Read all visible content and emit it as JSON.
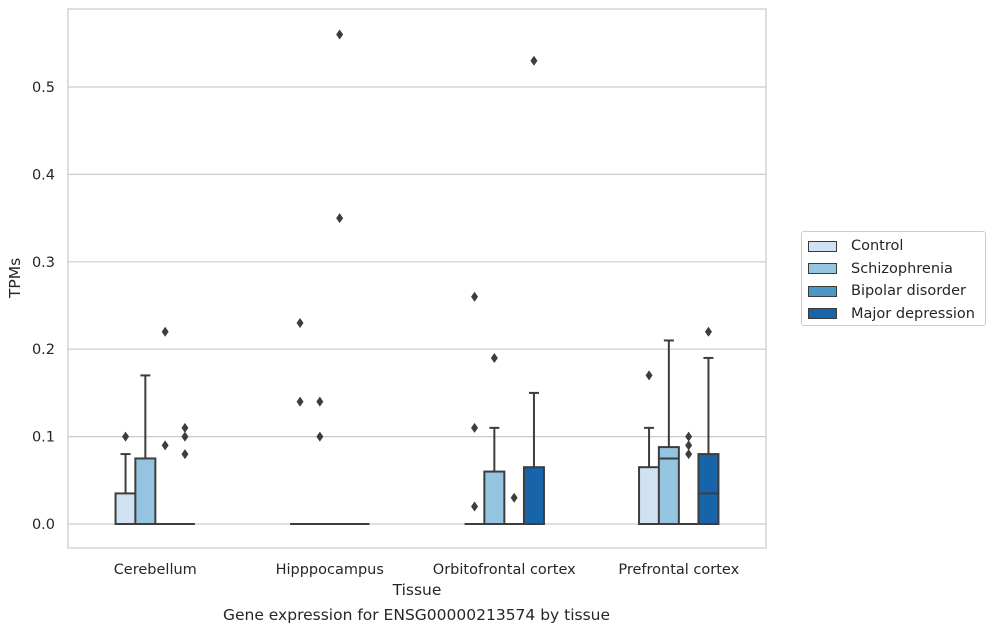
{
  "chart_data": {
    "type": "boxplot",
    "title": "",
    "caption": "Gene expression for ENSG00000213574 by tissue",
    "xlabel": "Tissue",
    "ylabel": "TPMs",
    "ylim": [
      -0.028,
      0.59
    ],
    "yticks": [
      "0.0",
      "0.1",
      "0.2",
      "0.3",
      "0.4",
      "0.5"
    ],
    "ytick_values": [
      0,
      0.1,
      0.2,
      0.3,
      0.4,
      0.5
    ],
    "grid": true,
    "legend_position": "right",
    "categories": [
      "Cerebellum",
      "Hipppocampus",
      "Orbitofrontal cortex",
      "Prefrontal cortex"
    ],
    "series": [
      {
        "name": "Control",
        "color": "#d0e1f2",
        "boxes": [
          {
            "q1": 0,
            "median": 0,
            "q3": 0.035,
            "whisker_low": 0,
            "whisker_high": 0.08,
            "outliers": [
              0.1
            ]
          },
          {
            "q1": 0,
            "median": 0,
            "q3": 0,
            "whisker_low": 0,
            "whisker_high": 0,
            "outliers": [
              0.23,
              0.14
            ]
          },
          {
            "q1": 0,
            "median": 0,
            "q3": 0,
            "whisker_low": 0,
            "whisker_high": 0,
            "outliers": [
              0.26,
              0.11,
              0.02
            ]
          },
          {
            "q1": 0,
            "median": 0,
            "q3": 0.065,
            "whisker_low": 0,
            "whisker_high": 0.11,
            "outliers": [
              0.17
            ]
          }
        ]
      },
      {
        "name": "Schizophrenia",
        "color": "#94c4df",
        "boxes": [
          {
            "q1": 0,
            "median": 0,
            "q3": 0.075,
            "whisker_low": 0,
            "whisker_high": 0.17,
            "outliers": []
          },
          {
            "q1": 0,
            "median": 0,
            "q3": 0,
            "whisker_low": 0,
            "whisker_high": 0,
            "outliers": [
              0.14,
              0.1
            ]
          },
          {
            "q1": 0,
            "median": 0,
            "q3": 0.06,
            "whisker_low": 0,
            "whisker_high": 0.11,
            "outliers": [
              0.19
            ]
          },
          {
            "q1": 0,
            "median": 0.075,
            "q3": 0.088,
            "whisker_low": 0,
            "whisker_high": 0.21,
            "outliers": []
          }
        ]
      },
      {
        "name": "Bipolar disorder",
        "color": "#4a98c9",
        "boxes": [
          {
            "q1": 0,
            "median": 0,
            "q3": 0,
            "whisker_low": 0,
            "whisker_high": 0,
            "outliers": [
              0.22,
              0.09
            ]
          },
          {
            "q1": 0,
            "median": 0,
            "q3": 0,
            "whisker_low": 0,
            "whisker_high": 0,
            "outliers": [
              0.35,
              0.56
            ]
          },
          {
            "q1": 0,
            "median": 0,
            "q3": 0,
            "whisker_low": 0,
            "whisker_high": 0,
            "outliers": [
              0.03
            ]
          },
          {
            "q1": 0,
            "median": 0,
            "q3": 0,
            "whisker_low": 0,
            "whisker_high": 0,
            "outliers": [
              0.1,
              0.09,
              0.08
            ]
          }
        ]
      },
      {
        "name": "Major depression",
        "color": "#1764ab",
        "boxes": [
          {
            "q1": 0,
            "median": 0,
            "q3": 0,
            "whisker_low": 0,
            "whisker_high": 0,
            "outliers": [
              0.11,
              0.1,
              0.08
            ]
          },
          {
            "q1": 0,
            "median": 0,
            "q3": 0,
            "whisker_low": 0,
            "whisker_high": 0,
            "outliers": []
          },
          {
            "q1": 0,
            "median": 0,
            "q3": 0.065,
            "whisker_low": 0,
            "whisker_high": 0.15,
            "outliers": [
              0.53
            ]
          },
          {
            "q1": 0,
            "median": 0.035,
            "q3": 0.08,
            "whisker_low": 0,
            "whisker_high": 0.19,
            "outliers": [
              0.22
            ]
          }
        ]
      }
    ]
  }
}
